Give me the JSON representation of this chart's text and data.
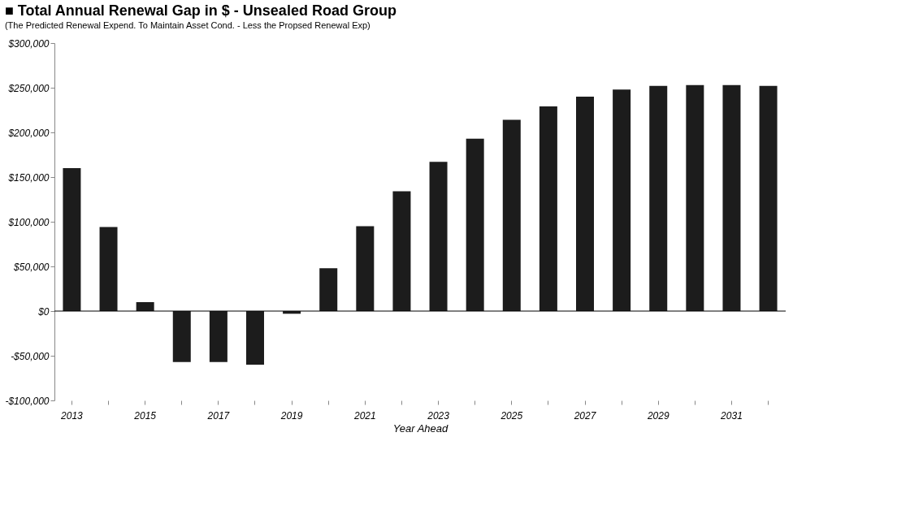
{
  "chart_data": {
    "type": "bar",
    "title": "■ Total Annual Renewal Gap in $ -  Unsealed Road Group",
    "subtitle": "(The Predicted Renewal Expend. To Maintain Asset Cond. -  Less the Propsed Renewal Exp)",
    "xlabel": "Year Ahead",
    "categories": [
      "2013",
      null,
      "2015",
      null,
      "2017",
      null,
      "2019",
      null,
      "2021",
      null,
      "2023",
      null,
      "2025",
      null,
      "2027",
      null,
      "2029",
      null,
      "2031",
      null
    ],
    "series": [
      {
        "color": "#1c1c1c",
        "values": [
          160000,
          94000,
          10000,
          -57000,
          -57000,
          -60000,
          -3000,
          48000,
          95000,
          134000,
          167000,
          193000,
          214000,
          229000,
          240000,
          248000,
          252000,
          253000,
          253000,
          252000
        ]
      }
    ],
    "ylim": [
      -100000,
      300000
    ],
    "yticks": [
      {
        "value": -100000,
        "label": "-$100,000"
      },
      {
        "value": -50000,
        "label": "-$50,000"
      },
      {
        "value": 0,
        "label": "$0"
      },
      {
        "value": 50000,
        "label": "$50,000"
      },
      {
        "value": 100000,
        "label": "$100,000"
      },
      {
        "value": 150000,
        "label": "$150,000"
      },
      {
        "value": 200000,
        "label": "$200,000"
      },
      {
        "value": 250000,
        "label": "$250,000"
      },
      {
        "value": 300000,
        "label": "$300,000"
      }
    ],
    "ref_lines": [
      {
        "axis": "y",
        "value": 0,
        "color": "#000000"
      }
    ],
    "grid": false
  }
}
